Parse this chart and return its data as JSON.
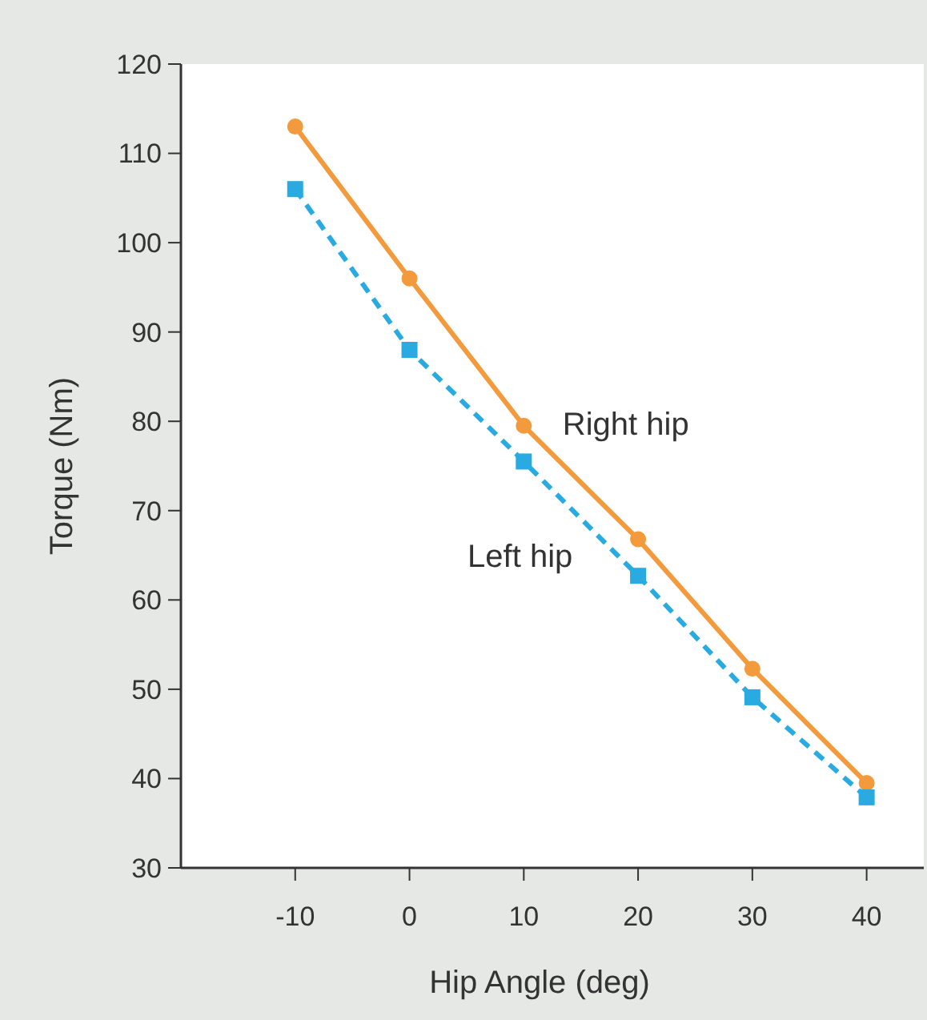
{
  "chart_data": {
    "type": "line",
    "xlabel": "Hip Angle (deg)",
    "ylabel": "Torque (Nm)",
    "x": [
      -10,
      0,
      10,
      20,
      30,
      40
    ],
    "xlim": [
      -20,
      45
    ],
    "xticks": [
      -10,
      0,
      10,
      20,
      30,
      40
    ],
    "ylim": [
      30,
      120
    ],
    "yticks": [
      30,
      40,
      50,
      60,
      70,
      80,
      90,
      100,
      110,
      120
    ],
    "grid": false,
    "series": [
      {
        "name": "Right hip",
        "color": "#f39a3c",
        "marker": "circle",
        "line_style": "solid",
        "values": [
          113,
          96,
          79.5,
          66.8,
          52.3,
          39.5
        ]
      },
      {
        "name": "Left hip",
        "color": "#29abe2",
        "marker": "square",
        "line_style": "dashed",
        "values": [
          106,
          88,
          75.5,
          62.7,
          49.1,
          37.9
        ]
      }
    ]
  }
}
